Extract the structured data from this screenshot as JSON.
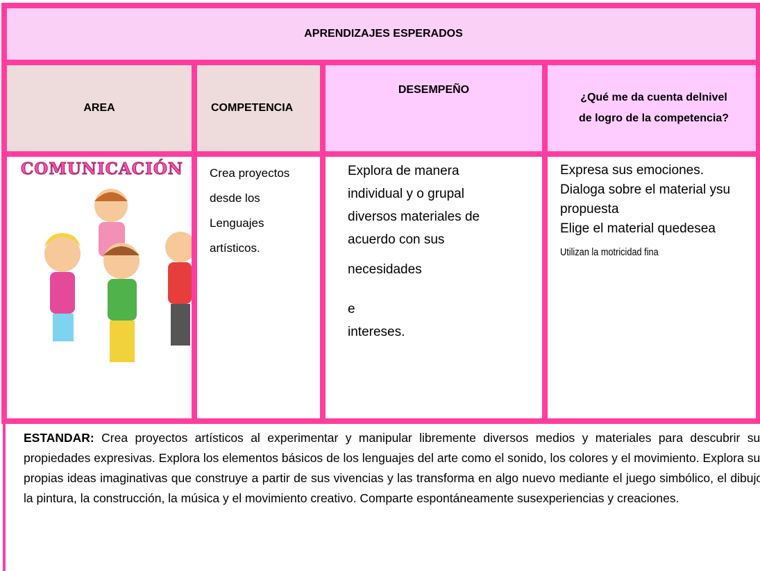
{
  "table": {
    "title": "APRENDIZAJES ESPERADOS",
    "headers": [
      "AREA",
      "COMPETENCIA",
      "DESEMPEÑO",
      "¿Qué me da cuenta delnivel de logro de la competencia?"
    ],
    "row": {
      "area": "COMUNICACIÓN",
      "competencia": [
        "Crea proyectos",
        "desde los",
        "Lenguajes",
        "artísticos."
      ],
      "desempeno": [
        "Explora de manera",
        "individual y o grupal",
        "diversos materiales de",
        "acuerdo con sus",
        "necesidades",
        "e",
        "intereses."
      ],
      "logro": [
        "Expresa sus emociones.",
        "Dialoga sobre el material ysu propuesta",
        "Elige el material quedesea",
        "Utilizan la motricidad fina"
      ]
    }
  },
  "estandar": {
    "label": "ESTANDAR:",
    "text": "Crea proyectos artísticos al experimentar y manipular libremente diversos medios y materiales para descubrir sus propiedades expresivas. Explora los elementos básicos de los lenguajes del arte como el sonido, los colores y el movimiento. Explora sus propias ideas imaginativas que construye a partir de sus vivencias y las transforma en algo nuevo mediante el juego simbólico, el dibujo, la pintura, la construcción, la música y el movimiento creativo. Comparte espontáneamente susexperiencias y creaciones."
  }
}
